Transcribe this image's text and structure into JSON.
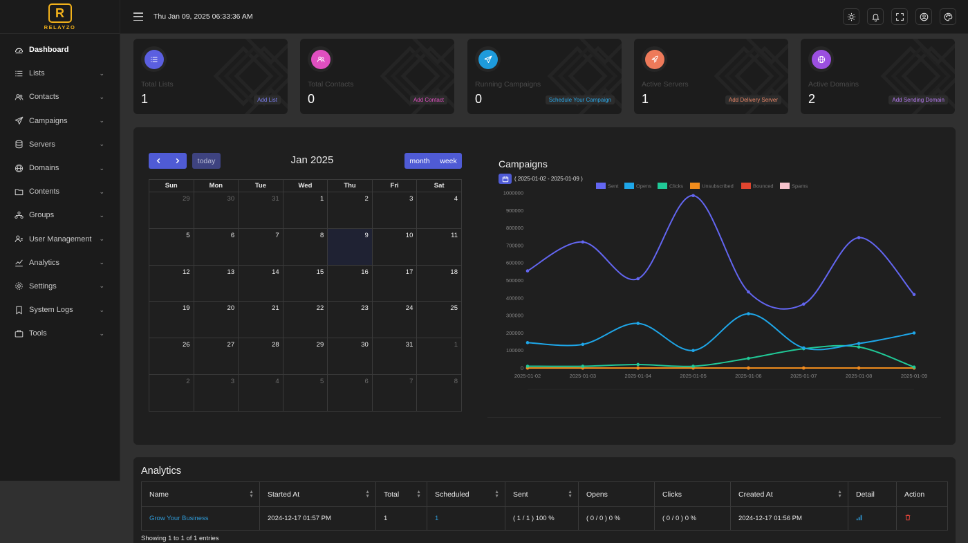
{
  "brand": {
    "mark": "R",
    "word": "RELAYZO"
  },
  "topbar": {
    "datetime": "Thu Jan 09, 2025 06:33:36 AM"
  },
  "sidebar": {
    "items": [
      {
        "label": "Dashboard",
        "icon": "dashboard-icon",
        "active": true
      },
      {
        "label": "Lists",
        "icon": "list-icon"
      },
      {
        "label": "Contacts",
        "icon": "contacts-icon"
      },
      {
        "label": "Campaigns",
        "icon": "send-icon"
      },
      {
        "label": "Servers",
        "icon": "database-icon"
      },
      {
        "label": "Domains",
        "icon": "globe-icon"
      },
      {
        "label": "Contents",
        "icon": "folder-icon"
      },
      {
        "label": "Groups",
        "icon": "groups-icon"
      },
      {
        "label": "User Management",
        "icon": "user-management-icon"
      },
      {
        "label": "Analytics",
        "icon": "analytics-icon"
      },
      {
        "label": "Settings",
        "icon": "settings-icon"
      },
      {
        "label": "System Logs",
        "icon": "bookmark-icon"
      },
      {
        "label": "Tools",
        "icon": "briefcase-icon"
      }
    ]
  },
  "cards": [
    {
      "title": "Total Lists",
      "value": "1",
      "action": "Add List",
      "color": "#5b5fe0",
      "action_color": "#7b7ff0",
      "icon": "list-icon"
    },
    {
      "title": "Total Contacts",
      "value": "0",
      "action": "Add Contact",
      "color": "#e04fc0",
      "action_color": "#e04fc0",
      "icon": "contacts-icon"
    },
    {
      "title": "Running Campaigns",
      "value": "0",
      "action": "Schedule Your Campaign",
      "color": "#1e9bdc",
      "action_color": "#2ba7e6",
      "icon": "send-icon"
    },
    {
      "title": "Active Servers",
      "value": "1",
      "action": "Add Delivery Server",
      "color": "#ee7a5a",
      "action_color": "#ee8a6a",
      "icon": "rocket-icon"
    },
    {
      "title": "Active Domains",
      "value": "2",
      "action": "Add Sending Domain",
      "color": "#9b4fe0",
      "action_color": "#b57af0",
      "icon": "globe-icon"
    }
  ],
  "calendar": {
    "title": "Jan 2025",
    "today_label": "today",
    "month_label": "month",
    "week_label": "week",
    "weekdays": [
      "Sun",
      "Mon",
      "Tue",
      "Wed",
      "Thu",
      "Fri",
      "Sat"
    ],
    "weeks": [
      [
        {
          "d": "29",
          "o": true
        },
        {
          "d": "30",
          "o": true
        },
        {
          "d": "31",
          "o": true
        },
        {
          "d": "1"
        },
        {
          "d": "2"
        },
        {
          "d": "3"
        },
        {
          "d": "4"
        }
      ],
      [
        {
          "d": "5"
        },
        {
          "d": "6"
        },
        {
          "d": "7"
        },
        {
          "d": "8"
        },
        {
          "d": "9",
          "today": true
        },
        {
          "d": "10"
        },
        {
          "d": "11"
        }
      ],
      [
        {
          "d": "12"
        },
        {
          "d": "13"
        },
        {
          "d": "14"
        },
        {
          "d": "15"
        },
        {
          "d": "16"
        },
        {
          "d": "17"
        },
        {
          "d": "18"
        }
      ],
      [
        {
          "d": "19"
        },
        {
          "d": "20"
        },
        {
          "d": "21"
        },
        {
          "d": "22"
        },
        {
          "d": "23"
        },
        {
          "d": "24"
        },
        {
          "d": "25"
        }
      ],
      [
        {
          "d": "26"
        },
        {
          "d": "27"
        },
        {
          "d": "28"
        },
        {
          "d": "29"
        },
        {
          "d": "30"
        },
        {
          "d": "31"
        },
        {
          "d": "1",
          "o": true
        }
      ],
      [
        {
          "d": "2",
          "o": true
        },
        {
          "d": "3",
          "o": true
        },
        {
          "d": "4",
          "o": true
        },
        {
          "d": "5",
          "o": true
        },
        {
          "d": "6",
          "o": true
        },
        {
          "d": "7",
          "o": true
        },
        {
          "d": "8",
          "o": true
        }
      ]
    ]
  },
  "chart": {
    "title": "Campaigns",
    "range": "( 2025-01-02 - 2025-01-09 )"
  },
  "chart_data": {
    "type": "line",
    "title": "Campaigns",
    "x": [
      "2025-01-02",
      "2025-01-03",
      "2025-01-04",
      "2025-01-05",
      "2025-01-06",
      "2025-01-07",
      "2025-01-08",
      "2025-01-09"
    ],
    "ylim": [
      0,
      1000000
    ],
    "yticks": [
      "0",
      "100000",
      "200000",
      "300000",
      "400000",
      "500000",
      "600000",
      "700000",
      "800000",
      "900000",
      "1000000"
    ],
    "legend_position": "top",
    "grid": false,
    "series": [
      {
        "name": "Sent",
        "color": "#6366f1",
        "values": [
          555000,
          720000,
          510000,
          985000,
          435000,
          365000,
          745000,
          420000
        ]
      },
      {
        "name": "Opens",
        "color": "#1ea6e8",
        "values": [
          145000,
          135000,
          255000,
          100000,
          310000,
          115000,
          140000,
          200000
        ]
      },
      {
        "name": "Clicks",
        "color": "#20c997",
        "values": [
          10000,
          10000,
          20000,
          10000,
          55000,
          110000,
          120000,
          5000
        ]
      },
      {
        "name": "Unsubscribed",
        "color": "#f08c1c",
        "values": [
          0,
          0,
          0,
          0,
          0,
          0,
          0,
          0
        ]
      },
      {
        "name": "Bounced",
        "color": "#e0452f",
        "values": [
          0,
          0,
          0,
          0,
          0,
          0,
          0,
          0
        ]
      },
      {
        "name": "Spams",
        "color": "#f7c3cd",
        "values": [
          0,
          0,
          0,
          0,
          0,
          0,
          0,
          0
        ]
      }
    ]
  },
  "analytics": {
    "title": "Analytics",
    "columns": [
      {
        "label": "Name",
        "sort": true
      },
      {
        "label": "Started At",
        "sort": true
      },
      {
        "label": "Total",
        "sort": true
      },
      {
        "label": "Scheduled",
        "sort": true
      },
      {
        "label": "Sent",
        "sort": true
      },
      {
        "label": "Opens",
        "sort": false
      },
      {
        "label": "Clicks",
        "sort": false
      },
      {
        "label": "Created At",
        "sort": true
      },
      {
        "label": "Detail",
        "sort": false
      },
      {
        "label": "Action",
        "sort": false
      }
    ],
    "rows": [
      {
        "name": "Grow Your Business",
        "started": "2024-12-17 01:57 PM",
        "total": "1",
        "scheduled": "1",
        "sent": "( 1 / 1 ) 100 %",
        "opens": "( 0 / 0 ) 0 %",
        "clicks": "( 0 / 0 ) 0 %",
        "created": "2024-12-17 01:56 PM"
      }
    ],
    "footer": "Showing 1 to 1 of 1 entries"
  }
}
